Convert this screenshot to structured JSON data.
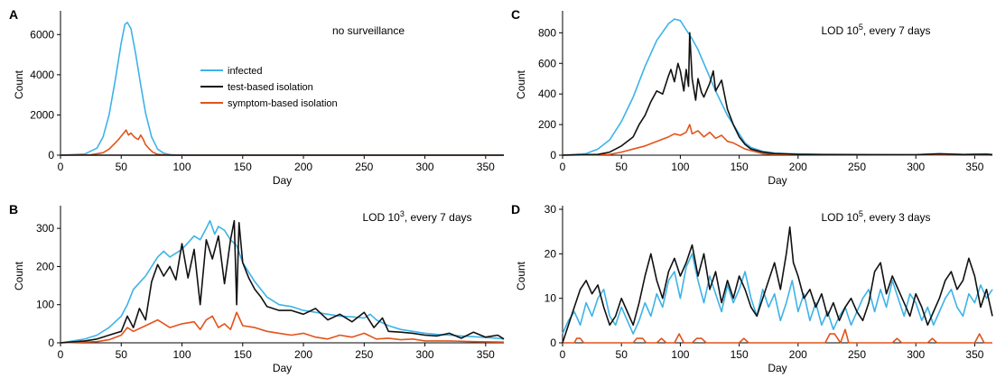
{
  "colors": {
    "infected": "#3cb3e8",
    "test_based": "#111111",
    "symptom_based": "#e2531b",
    "axis": "#000000"
  },
  "legend": {
    "placement": "panel A, center-right",
    "entries": [
      {
        "key": "infected",
        "label": "infected"
      },
      {
        "key": "test_based",
        "label": "test-based isolation"
      },
      {
        "key": "symptom_based",
        "label": "symptom-based isolation"
      }
    ]
  },
  "chart_data": [
    {
      "panel": "A",
      "type": "line",
      "title": "no surveillance",
      "xlabel": "Day",
      "ylabel": "Count",
      "xlim": [
        0,
        365
      ],
      "ylim": [
        0,
        7000
      ],
      "xticks": [
        0,
        50,
        100,
        150,
        200,
        250,
        300,
        350
      ],
      "yticks": [
        0,
        2000,
        4000,
        6000
      ],
      "grid": false,
      "series": [
        {
          "key": "infected",
          "name": "infected",
          "x": [
            0,
            20,
            30,
            35,
            40,
            45,
            50,
            53,
            55,
            58,
            62,
            66,
            70,
            75,
            80,
            85,
            90,
            95,
            100,
            110,
            365
          ],
          "y": [
            0,
            60,
            350,
            900,
            2000,
            3700,
            5600,
            6500,
            6600,
            6300,
            5000,
            3500,
            2100,
            900,
            300,
            100,
            30,
            10,
            0,
            0,
            0
          ]
        },
        {
          "key": "symptom_based",
          "name": "symptom-based isolation",
          "x": [
            0,
            25,
            35,
            40,
            45,
            48,
            50,
            52,
            54,
            56,
            58,
            60,
            62,
            64,
            66,
            68,
            70,
            73,
            76,
            80,
            90,
            365
          ],
          "y": [
            0,
            20,
            120,
            300,
            600,
            800,
            950,
            1100,
            1250,
            1000,
            1100,
            950,
            850,
            780,
            1000,
            800,
            520,
            320,
            150,
            40,
            0,
            0
          ]
        },
        {
          "key": "test_based",
          "name": "test-based isolation",
          "x": [
            0,
            365
          ],
          "y": [
            0,
            0
          ]
        }
      ]
    },
    {
      "panel": "B",
      "type": "line",
      "title": "LOD 10^3, every 7 days",
      "title_text": "LOD 10",
      "title_sup": "3",
      "title_suffix": ", every 7 days",
      "xlabel": "Day",
      "ylabel": "Count",
      "xlim": [
        0,
        365
      ],
      "ylim": [
        0,
        350
      ],
      "xticks": [
        0,
        50,
        100,
        150,
        200,
        250,
        300,
        350
      ],
      "yticks": [
        0,
        100,
        200,
        300
      ],
      "grid": false,
      "series": [
        {
          "key": "infected",
          "name": "infected",
          "x": [
            0,
            10,
            20,
            30,
            40,
            50,
            55,
            60,
            70,
            80,
            85,
            90,
            100,
            110,
            115,
            120,
            123,
            127,
            130,
            135,
            140,
            145,
            150,
            160,
            170,
            180,
            190,
            200,
            210,
            220,
            230,
            240,
            250,
            255,
            260,
            270,
            280,
            290,
            300,
            310,
            320,
            330,
            340,
            350,
            360,
            365
          ],
          "y": [
            0,
            5,
            10,
            20,
            40,
            70,
            100,
            140,
            175,
            225,
            240,
            225,
            245,
            280,
            270,
            300,
            320,
            285,
            305,
            295,
            270,
            255,
            210,
            160,
            120,
            100,
            95,
            85,
            80,
            75,
            70,
            68,
            65,
            75,
            60,
            45,
            35,
            30,
            25,
            22,
            20,
            18,
            16,
            14,
            12,
            10
          ]
        },
        {
          "key": "test_based",
          "name": "test-based isolation",
          "x": [
            0,
            20,
            30,
            40,
            50,
            55,
            60,
            65,
            70,
            75,
            80,
            85,
            90,
            95,
            100,
            105,
            110,
            115,
            120,
            125,
            130,
            135,
            140,
            143,
            145,
            147,
            150,
            155,
            160,
            165,
            170,
            180,
            190,
            200,
            210,
            220,
            230,
            240,
            250,
            258,
            265,
            270,
            280,
            290,
            300,
            310,
            320,
            330,
            340,
            350,
            360,
            365
          ],
          "y": [
            0,
            5,
            10,
            20,
            30,
            70,
            40,
            90,
            60,
            160,
            205,
            175,
            200,
            165,
            260,
            170,
            245,
            100,
            270,
            220,
            280,
            155,
            270,
            320,
            100,
            315,
            210,
            170,
            140,
            120,
            95,
            85,
            85,
            75,
            90,
            60,
            75,
            55,
            80,
            40,
            65,
            30,
            28,
            25,
            20,
            18,
            25,
            12,
            28,
            15,
            20,
            10
          ]
        },
        {
          "key": "symptom_based",
          "name": "symptom-based isolation",
          "x": [
            0,
            30,
            40,
            50,
            55,
            60,
            70,
            80,
            90,
            100,
            110,
            115,
            120,
            125,
            130,
            135,
            140,
            145,
            150,
            160,
            170,
            180,
            190,
            200,
            210,
            220,
            230,
            240,
            250,
            260,
            270,
            280,
            290,
            300,
            320,
            340,
            365
          ],
          "y": [
            0,
            3,
            8,
            20,
            40,
            30,
            45,
            60,
            40,
            50,
            55,
            35,
            60,
            70,
            40,
            50,
            35,
            80,
            45,
            40,
            30,
            25,
            20,
            25,
            15,
            10,
            20,
            15,
            25,
            10,
            12,
            8,
            10,
            5,
            5,
            3,
            2
          ]
        }
      ]
    },
    {
      "panel": "C",
      "type": "line",
      "title": "LOD 10^5, every 7 days",
      "title_text": "LOD 10",
      "title_sup": "5",
      "title_suffix": ", every 7 days",
      "xlabel": "Day",
      "ylabel": "Count",
      "xlim": [
        0,
        365
      ],
      "ylim": [
        0,
        920
      ],
      "xticks": [
        0,
        50,
        100,
        150,
        200,
        250,
        300,
        350
      ],
      "yticks": [
        0,
        200,
        400,
        600,
        800
      ],
      "grid": false,
      "series": [
        {
          "key": "infected",
          "name": "infected",
          "x": [
            0,
            20,
            30,
            40,
            50,
            60,
            70,
            80,
            90,
            95,
            100,
            105,
            110,
            115,
            120,
            130,
            140,
            150,
            155,
            160,
            170,
            180,
            190,
            200,
            220,
            250,
            300,
            320,
            340,
            360,
            365
          ],
          "y": [
            0,
            10,
            40,
            100,
            220,
            380,
            580,
            750,
            860,
            890,
            880,
            820,
            760,
            690,
            600,
            420,
            260,
            140,
            80,
            50,
            25,
            15,
            10,
            8,
            5,
            5,
            3,
            10,
            5,
            8,
            5
          ]
        },
        {
          "key": "test_based",
          "name": "test-based isolation",
          "x": [
            0,
            30,
            40,
            50,
            60,
            65,
            70,
            75,
            80,
            85,
            90,
            92,
            95,
            98,
            100,
            103,
            105,
            107,
            108,
            110,
            113,
            115,
            118,
            120,
            125,
            128,
            130,
            135,
            140,
            145,
            150,
            155,
            160,
            170,
            180,
            190,
            200,
            220,
            250,
            300,
            320,
            340,
            360,
            365
          ],
          "y": [
            0,
            5,
            20,
            60,
            120,
            200,
            260,
            350,
            420,
            400,
            520,
            560,
            480,
            600,
            550,
            420,
            560,
            450,
            800,
            500,
            360,
            500,
            410,
            380,
            470,
            550,
            420,
            490,
            300,
            200,
            120,
            70,
            40,
            20,
            10,
            8,
            5,
            4,
            3,
            3,
            8,
            4,
            6,
            3
          ]
        },
        {
          "key": "symptom_based",
          "name": "symptom-based isolation",
          "x": [
            0,
            40,
            50,
            60,
            70,
            80,
            90,
            95,
            100,
            105,
            108,
            110,
            115,
            120,
            125,
            130,
            135,
            140,
            145,
            150,
            155,
            160,
            170,
            180,
            365
          ],
          "y": [
            0,
            5,
            20,
            40,
            60,
            90,
            120,
            140,
            130,
            150,
            200,
            140,
            160,
            120,
            150,
            110,
            130,
            90,
            80,
            60,
            40,
            30,
            10,
            5,
            0
          ]
        }
      ]
    },
    {
      "panel": "D",
      "type": "line",
      "title": "LOD 10^5, every 3 days",
      "title_text": "LOD 10",
      "title_sup": "5",
      "title_suffix": ", every 3 days",
      "xlabel": "Day",
      "ylabel": "Count",
      "xlim": [
        0,
        365
      ],
      "ylim": [
        0,
        30
      ],
      "xticks": [
        0,
        50,
        100,
        150,
        200,
        250,
        300,
        350
      ],
      "yticks": [
        0,
        10,
        20,
        30
      ],
      "grid": false,
      "series": [
        {
          "key": "infected",
          "name": "infected",
          "x": [
            0,
            5,
            10,
            15,
            20,
            25,
            30,
            35,
            40,
            45,
            50,
            55,
            60,
            65,
            70,
            75,
            80,
            85,
            90,
            95,
            100,
            105,
            110,
            115,
            120,
            125,
            130,
            135,
            140,
            145,
            150,
            155,
            160,
            165,
            170,
            175,
            180,
            185,
            190,
            195,
            200,
            205,
            210,
            215,
            220,
            225,
            230,
            235,
            240,
            245,
            250,
            255,
            260,
            265,
            270,
            275,
            280,
            285,
            290,
            295,
            300,
            305,
            310,
            315,
            320,
            325,
            330,
            335,
            340,
            345,
            350,
            355,
            360,
            365
          ],
          "y": [
            2,
            5,
            7,
            4,
            9,
            6,
            10,
            12,
            6,
            4,
            8,
            5,
            2,
            5,
            9,
            6,
            11,
            8,
            14,
            16,
            10,
            17,
            20,
            14,
            9,
            15,
            11,
            7,
            13,
            9,
            12,
            16,
            10,
            6,
            12,
            8,
            11,
            5,
            9,
            14,
            7,
            11,
            5,
            9,
            4,
            7,
            3,
            6,
            8,
            4,
            7,
            10,
            12,
            7,
            12,
            8,
            14,
            10,
            6,
            11,
            9,
            5,
            8,
            4,
            7,
            10,
            12,
            8,
            6,
            11,
            9,
            13,
            10,
            12
          ]
        },
        {
          "key": "test_based",
          "name": "test-based isolation",
          "x": [
            0,
            5,
            10,
            15,
            20,
            25,
            30,
            35,
            40,
            45,
            50,
            55,
            60,
            65,
            70,
            75,
            80,
            85,
            90,
            95,
            100,
            105,
            110,
            115,
            120,
            125,
            130,
            135,
            140,
            145,
            150,
            155,
            160,
            165,
            170,
            175,
            180,
            185,
            190,
            193,
            196,
            200,
            205,
            210,
            215,
            220,
            225,
            230,
            235,
            240,
            245,
            250,
            255,
            260,
            265,
            270,
            275,
            280,
            285,
            290,
            295,
            300,
            305,
            310,
            315,
            320,
            325,
            330,
            335,
            340,
            345,
            350,
            355,
            360,
            365
          ],
          "y": [
            0,
            4,
            8,
            12,
            14,
            11,
            13,
            8,
            4,
            6,
            10,
            7,
            4,
            9,
            15,
            20,
            14,
            10,
            16,
            19,
            15,
            18,
            22,
            15,
            20,
            12,
            16,
            9,
            14,
            10,
            15,
            12,
            8,
            6,
            10,
            14,
            18,
            12,
            20,
            26,
            18,
            15,
            10,
            12,
            8,
            11,
            6,
            9,
            5,
            8,
            10,
            7,
            5,
            9,
            16,
            18,
            11,
            15,
            12,
            9,
            6,
            11,
            8,
            4,
            7,
            10,
            14,
            16,
            12,
            14,
            19,
            15,
            8,
            12,
            6
          ]
        },
        {
          "key": "symptom_based",
          "name": "symptom-based isolation",
          "x": [
            0,
            10,
            12,
            15,
            18,
            20,
            30,
            60,
            63,
            68,
            71,
            80,
            84,
            88,
            95,
            99,
            103,
            110,
            114,
            118,
            122,
            150,
            154,
            158,
            180,
            190,
            200,
            223,
            227,
            231,
            236,
            240,
            243,
            250,
            260,
            280,
            284,
            288,
            310,
            314,
            318,
            330,
            350,
            354,
            358,
            365
          ],
          "y": [
            0,
            0,
            1,
            1,
            0,
            0,
            0,
            0,
            1,
            1,
            0,
            0,
            1,
            0,
            0,
            2,
            0,
            0,
            1,
            1,
            0,
            0,
            1,
            0,
            0,
            0,
            0,
            0,
            2,
            2,
            0,
            3,
            0,
            0,
            0,
            0,
            1,
            0,
            0,
            1,
            0,
            0,
            0,
            2,
            0,
            0
          ]
        }
      ]
    }
  ]
}
